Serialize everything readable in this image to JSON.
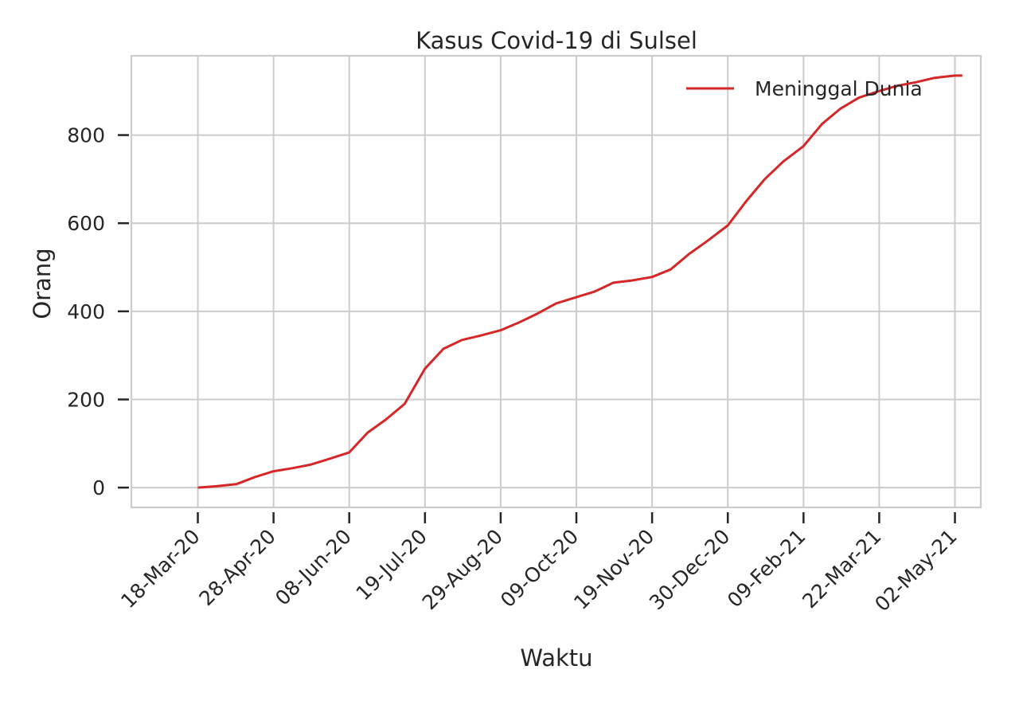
{
  "chart_data": {
    "type": "line",
    "title": "Kasus Covid-19 di Sulsel",
    "xlabel": "Waktu",
    "ylabel": "Orang",
    "ylim": [
      -45,
      980
    ],
    "xlim": [
      "2020-02-11",
      "2021-05-16"
    ],
    "grid": true,
    "legend_position": "top-right",
    "x_ticks": [
      "18-Mar-20",
      "28-Apr-20",
      "08-Jun-20",
      "19-Jul-20",
      "29-Aug-20",
      "09-Oct-20",
      "19-Nov-20",
      "30-Dec-20",
      "09-Feb-21",
      "22-Mar-21",
      "02-May-21"
    ],
    "y_ticks": [
      0,
      200,
      400,
      600,
      800
    ],
    "series": [
      {
        "name": "Meninggal Dunia",
        "color": "#d62728",
        "x": [
          "2020-03-18",
          "2020-03-28",
          "2020-04-08",
          "2020-04-18",
          "2020-04-28",
          "2020-05-08",
          "2020-05-18",
          "2020-05-28",
          "2020-06-08",
          "2020-06-18",
          "2020-06-28",
          "2020-07-08",
          "2020-07-19",
          "2020-07-29",
          "2020-08-08",
          "2020-08-18",
          "2020-08-29",
          "2020-09-08",
          "2020-09-18",
          "2020-09-28",
          "2020-10-09",
          "2020-10-19",
          "2020-10-29",
          "2020-11-08",
          "2020-11-19",
          "2020-11-29",
          "2020-12-09",
          "2020-12-19",
          "2020-12-30",
          "2021-01-09",
          "2021-01-19",
          "2021-01-29",
          "2021-02-09",
          "2021-02-19",
          "2021-03-01",
          "2021-03-11",
          "2021-03-22",
          "2021-04-01",
          "2021-04-11",
          "2021-04-21",
          "2021-05-02",
          "2021-05-06"
        ],
        "values": [
          0,
          3,
          8,
          24,
          37,
          44,
          52,
          65,
          80,
          125,
          155,
          190,
          270,
          315,
          335,
          345,
          357,
          375,
          395,
          418,
          432,
          445,
          465,
          470,
          478,
          495,
          530,
          560,
          595,
          650,
          700,
          740,
          775,
          825,
          860,
          885,
          900,
          912,
          920,
          930,
          935,
          935
        ]
      }
    ]
  }
}
